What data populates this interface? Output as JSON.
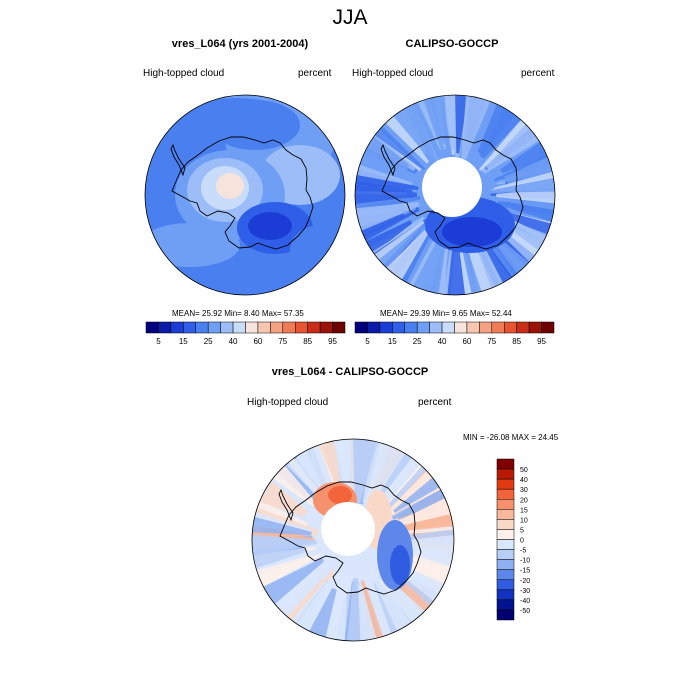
{
  "figure": {
    "title": "JJA"
  },
  "panels": [
    {
      "title": "vres_L064 (yrs 2001-2004)",
      "left_label": "High-topped cloud",
      "right_label": "percent",
      "stats": "MEAN=  25.92  Min=   8.40  Max=  57.35",
      "colorbar_ticks": [
        "5",
        "15",
        "25",
        "40",
        "60",
        "75",
        "85",
        "95"
      ]
    },
    {
      "title": "CALIPSO-GOCCP",
      "left_label": "High-topped cloud",
      "right_label": "percent",
      "stats": "MEAN=  29.39  Min=   9.65  Max=  52.44",
      "colorbar_ticks": [
        "5",
        "15",
        "25",
        "40",
        "60",
        "75",
        "85",
        "95"
      ]
    },
    {
      "title": "vres_L064 - CALIPSO-GOCCP",
      "left_label": "High-topped cloud",
      "right_label": "percent",
      "stats": "MIN = -26.08 MAX =  24.45",
      "colorbar_ticks": [
        "50",
        "40",
        "30",
        "20",
        "15",
        "10",
        "5",
        "0",
        "-5",
        "-10",
        "-15",
        "-20",
        "-30",
        "-40",
        "-50"
      ]
    }
  ],
  "colors": {
    "sequential_palette": [
      "#00007f",
      "#0a1ba8",
      "#1b3dd6",
      "#2f5fe8",
      "#4a7ff0",
      "#6f9ef5",
      "#9dbdf8",
      "#c9dcfa",
      "#f5e3dc",
      "#f7c6b0",
      "#f4a282",
      "#ef7c56",
      "#e65530",
      "#c92d15",
      "#9a1208",
      "#6e0000"
    ],
    "diverging_palette": [
      "#800000",
      "#b81a05",
      "#e13a12",
      "#f4643a",
      "#f6916d",
      "#f8b79b",
      "#f9d8c8",
      "#fdf0ea",
      "#d9e6fb",
      "#b7cef7",
      "#8fb1f2",
      "#5d87ea",
      "#2f5ce0",
      "#1133c0",
      "#00148f",
      "#000070"
    ]
  }
}
